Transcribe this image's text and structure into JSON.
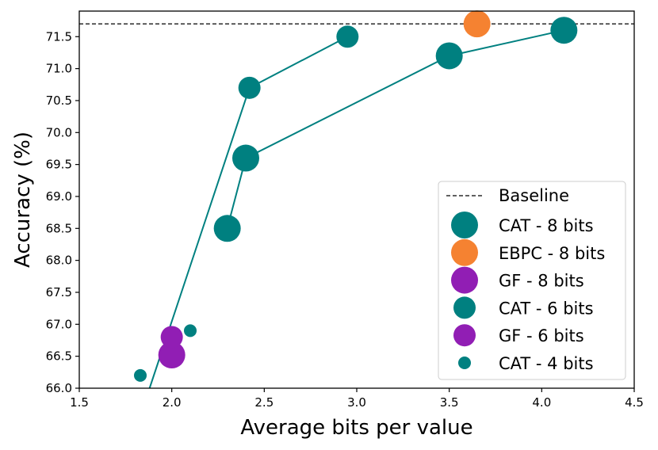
{
  "chart_data": {
    "type": "scatter",
    "title": "",
    "xlabel": "Average bits per value",
    "ylabel": "Accuracy (%)",
    "xlim": [
      1.5,
      4.5
    ],
    "ylim": [
      66.0,
      71.9
    ],
    "xticks": [
      "1.5",
      "2.0",
      "2.5",
      "3.0",
      "3.5",
      "4.0",
      "4.5"
    ],
    "yticks": [
      "66.0",
      "66.5",
      "67.0",
      "67.5",
      "68.0",
      "68.5",
      "69.0",
      "69.5",
      "70.0",
      "70.5",
      "71.0",
      "71.5"
    ],
    "grid": false,
    "legend_position": "lower-right",
    "baseline": {
      "name": "Baseline",
      "value": 71.7
    },
    "series": [
      {
        "name": "CAT - 8 bits",
        "color": "#008080",
        "marker_size": "large",
        "points": [
          [
            2.3,
            68.5
          ],
          [
            2.4,
            69.6
          ],
          [
            3.5,
            71.2
          ],
          [
            4.12,
            71.6
          ]
        ]
      },
      {
        "name": "EBPC - 8 bits",
        "color": "#f58231",
        "marker_size": "large",
        "points": [
          [
            3.65,
            71.7
          ]
        ]
      },
      {
        "name": "GF - 8 bits",
        "color": "#911eb4",
        "marker_size": "large",
        "points": [
          [
            2.0,
            66.52
          ]
        ]
      },
      {
        "name": "CAT - 6 bits",
        "color": "#008080",
        "marker_size": "medium",
        "points": [
          [
            2.42,
            70.7
          ],
          [
            2.95,
            71.5
          ]
        ]
      },
      {
        "name": "GF - 6 bits",
        "color": "#911eb4",
        "marker_size": "medium",
        "points": [
          [
            2.0,
            66.8
          ]
        ]
      },
      {
        "name": "CAT - 4 bits",
        "color": "#008080",
        "marker_size": "small",
        "points": [
          [
            1.83,
            66.2
          ],
          [
            2.1,
            66.9
          ]
        ]
      }
    ],
    "lines": [
      {
        "color": "#008080",
        "points": [
          [
            1.88,
            66.0
          ],
          [
            2.42,
            70.7
          ],
          [
            2.95,
            71.5
          ]
        ]
      },
      {
        "color": "#008080",
        "points": [
          [
            2.3,
            68.5
          ],
          [
            2.4,
            69.6
          ],
          [
            3.5,
            71.2
          ],
          [
            4.12,
            71.6
          ]
        ]
      }
    ]
  }
}
